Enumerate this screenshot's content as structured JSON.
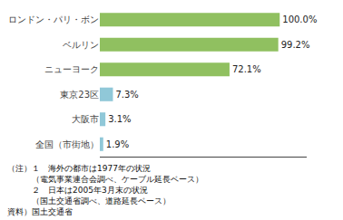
{
  "chart_data": {
    "type": "bar",
    "orientation": "horizontal",
    "categories": [
      "ロンドン・パリ・ボン",
      "ベルリン",
      "ニューヨーク",
      "東京23区",
      "大阪市",
      "全国（市街地）"
    ],
    "values": [
      100.0,
      99.2,
      72.1,
      7.3,
      3.1,
      1.9
    ],
    "value_labels": [
      "100.0%",
      "99.2%",
      "72.1%",
      "7.3%",
      "3.1%",
      "1.9%"
    ],
    "data_labels": true,
    "colors": [
      "#90c060",
      "#90c060",
      "#90c060",
      "#90c8d8",
      "#90c8d8",
      "#90c8d8"
    ],
    "xlim": [
      0,
      115
    ],
    "xticks": [],
    "tick_labels": "y",
    "grid": false,
    "annotations": [
      "（注）１　海外の都市は1977年の状況",
      "　　　（電気事業連合会調べ、ケーブル延長ベース）",
      "　　　２　日本は2005年3月末の状況",
      "　　　（国土交通省調べ、道路延長ベース）",
      "資料）国土交通省"
    ]
  }
}
